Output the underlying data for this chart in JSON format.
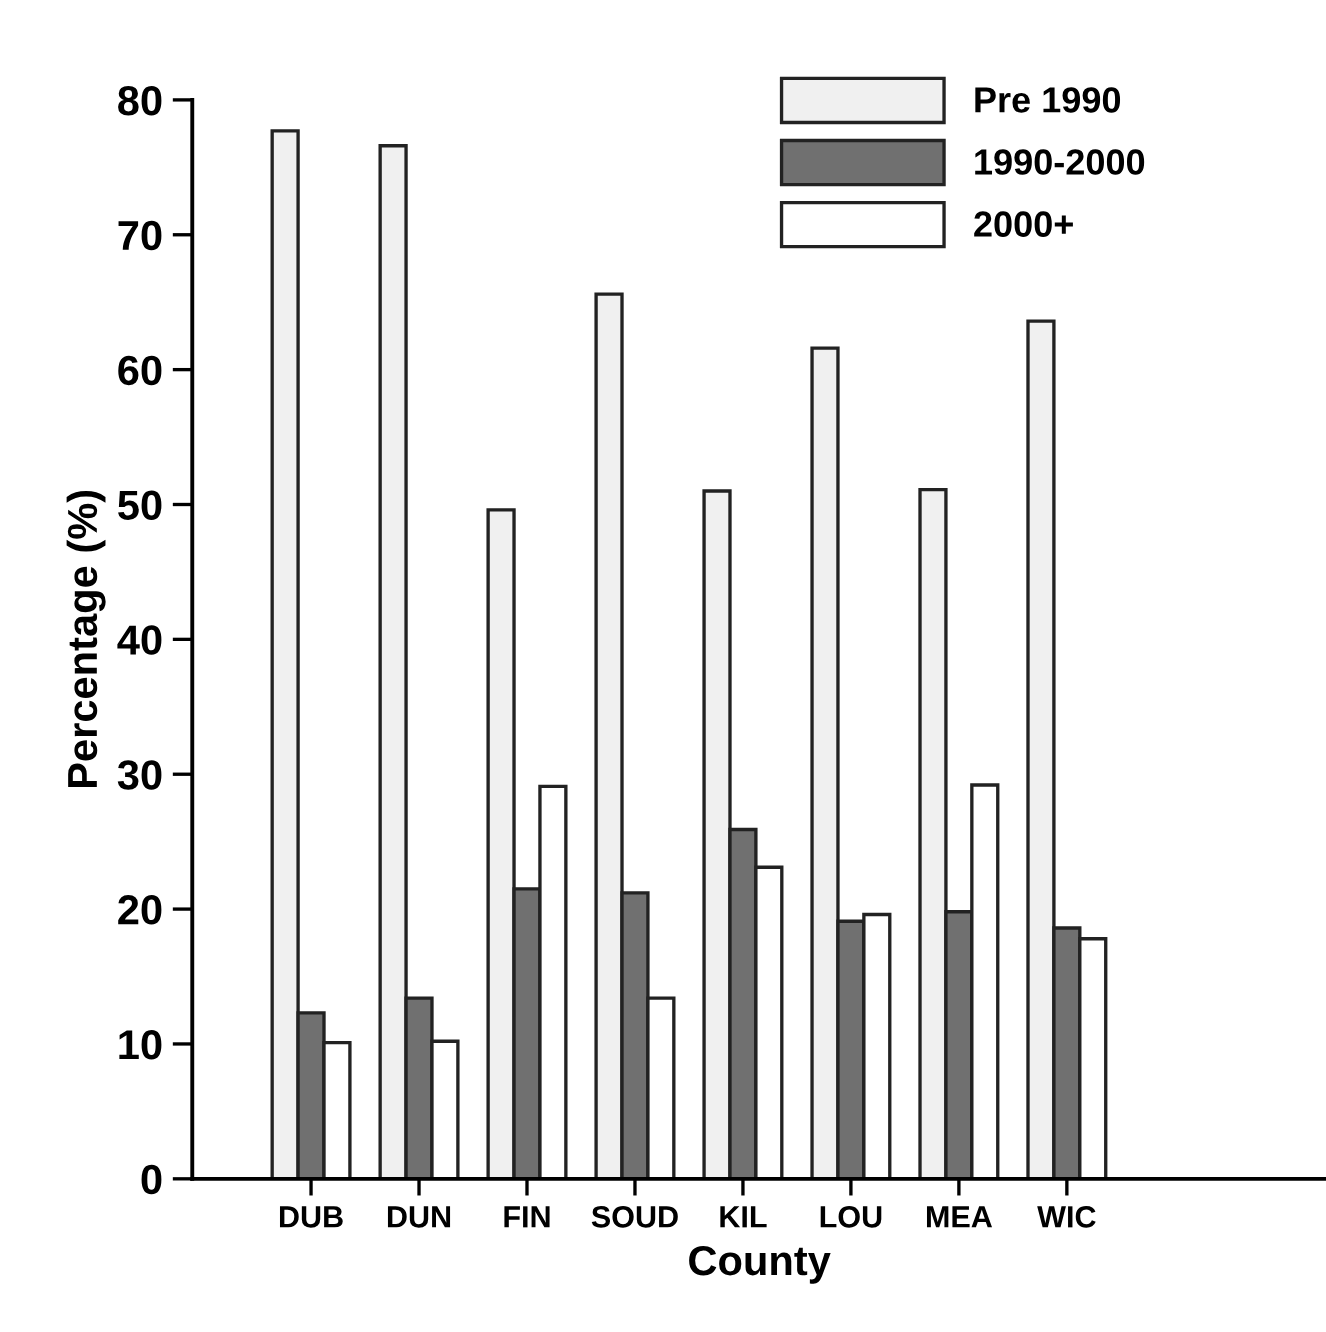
{
  "chart_data": {
    "type": "bar",
    "xlabel": "County",
    "ylabel": "Percentage (%)",
    "categories": [
      "DUB",
      "DUN",
      "FIN",
      "SOUD",
      "KIL",
      "LOU",
      "MEA",
      "WIC"
    ],
    "series": [
      {
        "name": "Pre 1990",
        "color": "#f0f0f0",
        "values": [
          77.7,
          76.6,
          49.6,
          65.6,
          51.0,
          61.6,
          51.1,
          63.6
        ]
      },
      {
        "name": "1990-2000",
        "color": "#707070",
        "values": [
          12.3,
          13.4,
          21.5,
          21.2,
          25.9,
          19.1,
          19.8,
          18.6
        ]
      },
      {
        "name": "2000+",
        "color": "#ffffff",
        "values": [
          10.1,
          10.2,
          29.1,
          13.4,
          23.1,
          19.6,
          29.2,
          17.8
        ]
      }
    ],
    "ylim": [
      0,
      80
    ],
    "yticks": [
      0,
      10,
      20,
      30,
      40,
      50,
      60,
      70,
      80
    ],
    "legend": "top right",
    "grid": false
  }
}
